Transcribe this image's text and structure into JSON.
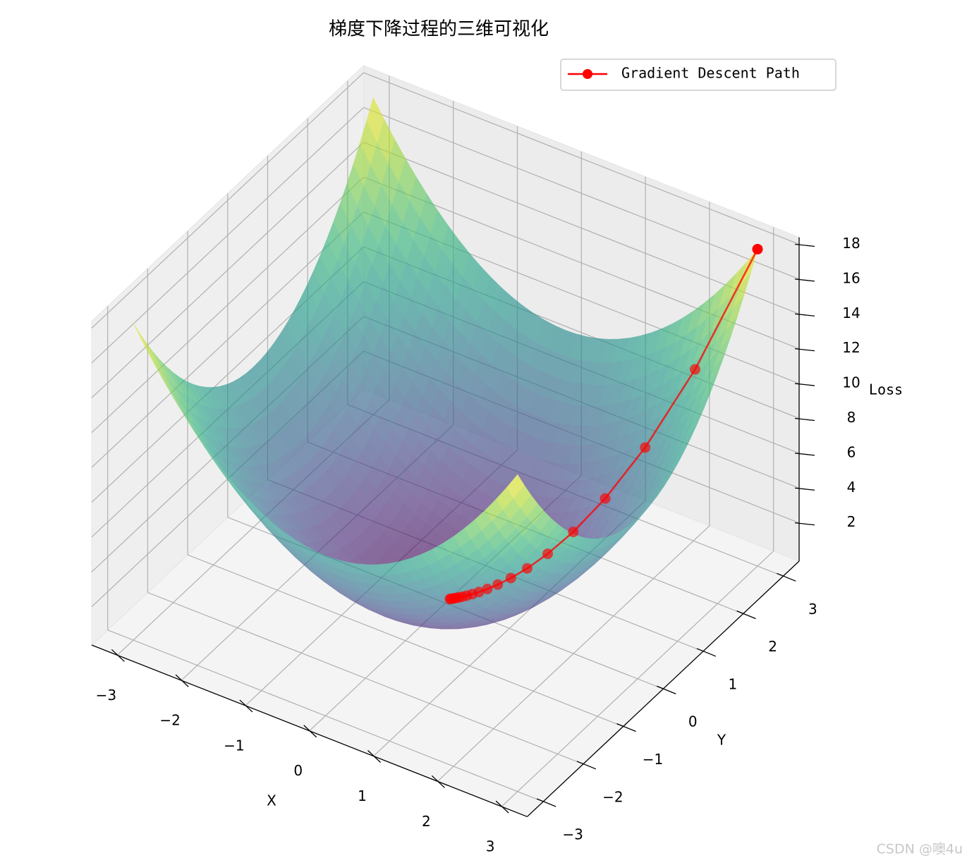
{
  "chart_data": {
    "type": "surface3d",
    "title": "梯度下降过程的三维可视化",
    "x_label": "X",
    "y_label": "Y",
    "z_label": "Loss",
    "xlim": [
      -3.4,
      3.4
    ],
    "ylim": [
      -3.4,
      3.4
    ],
    "zlim": [
      -0.2,
      18.4
    ],
    "xticks": [
      {
        "value": -3,
        "label": "−3"
      },
      {
        "value": -2,
        "label": "−2"
      },
      {
        "value": -1,
        "label": "−1"
      },
      0,
      1,
      2,
      3
    ],
    "yticks": [
      {
        "value": -3,
        "label": "−3"
      },
      {
        "value": -2,
        "label": "−2"
      },
      {
        "value": -1,
        "label": "−1"
      },
      0,
      1,
      2,
      3
    ],
    "zticks": [
      2,
      4,
      6,
      8,
      10,
      12,
      14,
      16,
      18
    ],
    "grid": true,
    "legend": "upper right",
    "colormap": "viridis",
    "series": [
      {
        "name": "Gradient Descent Path",
        "color": "#ff0000",
        "x": [
          3,
          2.4,
          1.92,
          1.536,
          1.229,
          0.983,
          0.786,
          0.629,
          0.503,
          0.403,
          0.322,
          0.258,
          0.206,
          0.165,
          0.132,
          0.106,
          0.084,
          0.068,
          0.054,
          0.043
        ],
        "y": [
          3,
          2.4,
          1.92,
          1.536,
          1.229,
          0.983,
          0.786,
          0.629,
          0.503,
          0.403,
          0.322,
          0.258,
          0.206,
          0.165,
          0.132,
          0.106,
          0.084,
          0.068,
          0.054,
          0.043
        ],
        "z": [
          18,
          11.52,
          7.373,
          4.719,
          3.02,
          1.933,
          1.237,
          0.792,
          0.507,
          0.324,
          0.208,
          0.133,
          0.085,
          0.054,
          0.035,
          0.022,
          0.014,
          0.009,
          0.006,
          0.004
        ]
      }
    ],
    "watermark": "CSDN @噢4u"
  }
}
